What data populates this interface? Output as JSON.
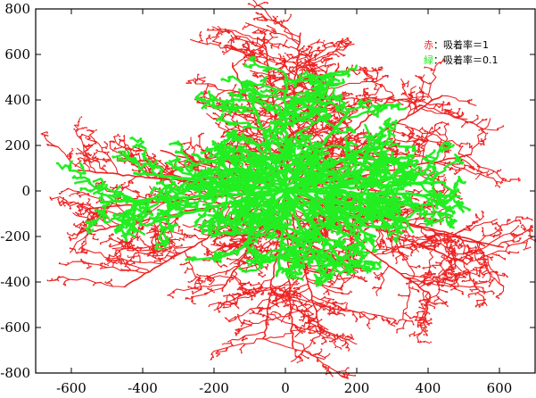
{
  "chart_data": {
    "type": "scatter",
    "title": "",
    "xlabel": "",
    "ylabel": "",
    "xlim": [
      -700,
      700
    ],
    "ylim": [
      -800,
      800
    ],
    "x_ticks": [
      -600,
      -400,
      -200,
      0,
      200,
      400,
      600
    ],
    "y_ticks": [
      800,
      600,
      400,
      200,
      0,
      -200,
      -400,
      -600,
      -800
    ],
    "x_tick_labels": [
      "-600",
      "-400",
      "-200",
      "0",
      "200",
      "400",
      "600"
    ],
    "y_tick_labels": [
      "800",
      "600",
      "400",
      "200",
      "0",
      "-200",
      "-400",
      "-600",
      "-800"
    ],
    "grid": false,
    "legend_position": "top-right",
    "series": [
      {
        "name": "赤：吸着率＝1",
        "color": "#ee2222",
        "branch_tips": [
          [
            -60,
            680
          ],
          [
            40,
            690
          ],
          [
            -150,
            560
          ],
          [
            150,
            560
          ],
          [
            300,
            420
          ],
          [
            440,
            420
          ],
          [
            520,
            160
          ],
          [
            610,
            -250
          ],
          [
            -230,
            180
          ],
          [
            -580,
            90
          ],
          [
            -560,
            -80
          ],
          [
            -550,
            -180
          ],
          [
            -450,
            -420
          ],
          [
            -180,
            -440
          ],
          [
            -60,
            -650
          ],
          [
            20,
            -690
          ],
          [
            100,
            -620
          ],
          [
            410,
            -460
          ],
          [
            560,
            -240
          ],
          [
            510,
            -320
          ],
          [
            -350,
            180
          ],
          [
            230,
            180
          ]
        ]
      },
      {
        "name": "緑：吸着率＝0.1",
        "color": "#22ee22",
        "branch_tips": [
          [
            0,
            510
          ],
          [
            -100,
            420
          ],
          [
            180,
            360
          ],
          [
            280,
            240
          ],
          [
            360,
            160
          ],
          [
            450,
            40
          ],
          [
            460,
            -20
          ],
          [
            300,
            -110
          ],
          [
            250,
            -200
          ],
          [
            170,
            -330
          ],
          [
            100,
            -360
          ],
          [
            -20,
            -370
          ],
          [
            -140,
            -280
          ],
          [
            -360,
            -130
          ],
          [
            -520,
            -50
          ],
          [
            -420,
            80
          ],
          [
            -260,
            160
          ],
          [
            -90,
            220
          ]
        ]
      }
    ]
  }
}
